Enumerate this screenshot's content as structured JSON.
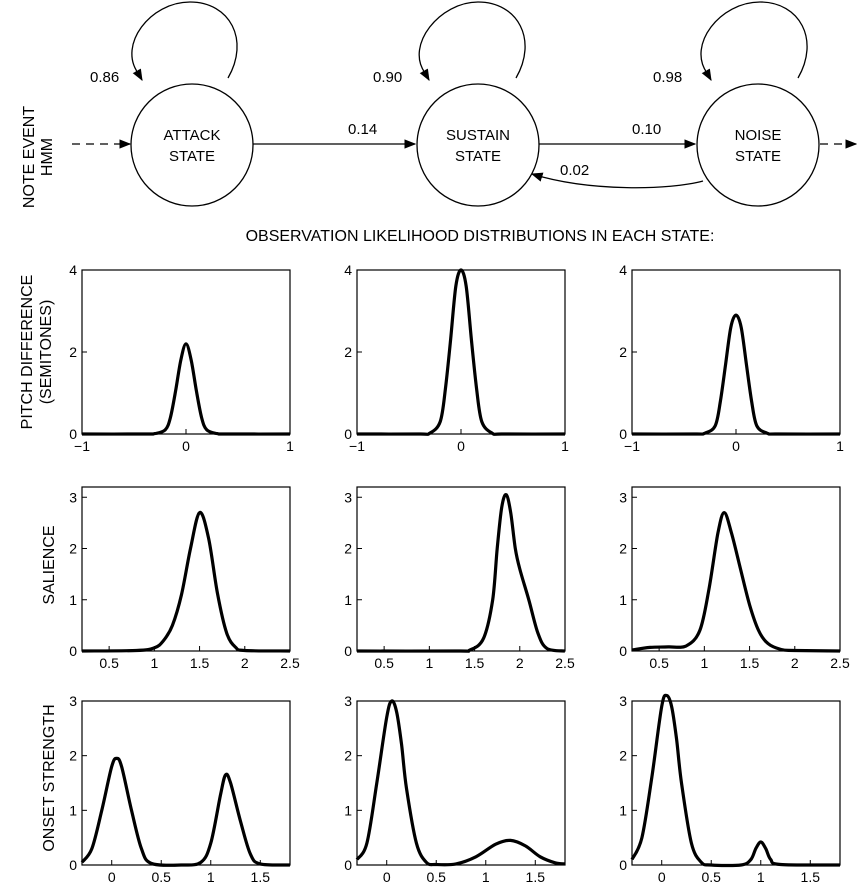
{
  "hmm": {
    "side_label_line1": "NOTE EVENT",
    "side_label_line2": "HMM",
    "states": [
      {
        "line1": "ATTACK",
        "line2": "STATE",
        "self_prob": "0.86"
      },
      {
        "line1": "SUSTAIN",
        "line2": "STATE",
        "self_prob": "0.90"
      },
      {
        "line1": "NOISE",
        "line2": "STATE",
        "self_prob": "0.98"
      }
    ],
    "transitions": {
      "attack_to_sustain": "0.14",
      "sustain_to_noise": "0.10",
      "noise_to_sustain": "0.02"
    }
  },
  "heading": "OBSERVATION LIKELIHOOD DISTRIBUTIONS IN EACH STATE:",
  "row_labels": [
    {
      "line1": "PITCH DIFFERENCE",
      "line2": "(SEMITONES)"
    },
    {
      "line1": "SALIENCE",
      "line2": ""
    },
    {
      "line1": "ONSET STRENGTH",
      "line2": ""
    }
  ],
  "chart_data": [
    {
      "type": "line",
      "row": 0,
      "col": 0,
      "xlim": [
        -1,
        1
      ],
      "ylim": [
        0,
        4
      ],
      "xticks": [
        "−1",
        "0",
        "1"
      ],
      "xtick_values": [
        -1,
        0,
        1
      ],
      "yticks": [
        "0",
        "2",
        "4"
      ],
      "ytick_values": [
        0,
        2,
        4
      ],
      "x": [
        -1,
        -0.4,
        -0.3,
        -0.2,
        -0.15,
        -0.1,
        -0.05,
        0,
        0.05,
        0.1,
        0.15,
        0.2,
        0.3,
        0.4,
        1
      ],
      "y": [
        0,
        0,
        0.01,
        0.1,
        0.4,
        1.05,
        1.8,
        2.2,
        1.8,
        1.05,
        0.4,
        0.1,
        0.01,
        0,
        0
      ]
    },
    {
      "type": "line",
      "row": 0,
      "col": 1,
      "xlim": [
        -1,
        1
      ],
      "ylim": [
        0,
        4
      ],
      "xticks": [
        "−1",
        "0",
        "1"
      ],
      "xtick_values": [
        -1,
        0,
        1
      ],
      "yticks": [
        "0",
        "2",
        "4"
      ],
      "ytick_values": [
        0,
        2,
        4
      ],
      "x": [
        -1,
        -0.4,
        -0.3,
        -0.2,
        -0.15,
        -0.1,
        -0.05,
        0,
        0.05,
        0.1,
        0.15,
        0.2,
        0.3,
        0.4,
        1
      ],
      "y": [
        0,
        0,
        0.02,
        0.3,
        1.1,
        2.3,
        3.6,
        4.0,
        3.6,
        2.3,
        1.1,
        0.3,
        0.02,
        0,
        0
      ]
    },
    {
      "type": "line",
      "row": 0,
      "col": 2,
      "xlim": [
        -1,
        1
      ],
      "ylim": [
        0,
        4
      ],
      "xticks": [
        "−1",
        "0",
        "1"
      ],
      "xtick_values": [
        -1,
        0,
        1
      ],
      "yticks": [
        "0",
        "2",
        "4"
      ],
      "ytick_values": [
        0,
        2,
        4
      ],
      "x": [
        -1,
        -0.4,
        -0.3,
        -0.2,
        -0.15,
        -0.1,
        -0.05,
        0,
        0.05,
        0.1,
        0.15,
        0.2,
        0.3,
        0.4,
        1
      ],
      "y": [
        0,
        0,
        0.02,
        0.2,
        0.8,
        1.7,
        2.6,
        2.9,
        2.6,
        1.7,
        0.8,
        0.2,
        0.02,
        0,
        0
      ]
    },
    {
      "type": "line",
      "row": 1,
      "col": 1,
      "xlim": [
        0.2,
        2.5
      ],
      "ylim": [
        0,
        3.2
      ],
      "xticks": [
        "0.5",
        "1",
        "1.5",
        "2",
        "2.5"
      ],
      "xtick_values": [
        0.5,
        1,
        1.5,
        2,
        2.5
      ],
      "yticks": [
        "0",
        "1",
        "2",
        "3"
      ],
      "ytick_values": [
        0,
        1,
        2,
        3
      ],
      "x": [
        0.2,
        1.3,
        1.45,
        1.6,
        1.7,
        1.75,
        1.8,
        1.85,
        1.9,
        1.95,
        2.0,
        2.1,
        2.2,
        2.3,
        2.5
      ],
      "y": [
        0,
        0,
        0.02,
        0.25,
        1.0,
        2.0,
        2.8,
        3.05,
        2.7,
        2.0,
        1.6,
        1.0,
        0.35,
        0.05,
        0
      ]
    },
    {
      "type": "line",
      "row": 1,
      "col": 0,
      "xlim": [
        0.2,
        2.5
      ],
      "ylim": [
        0,
        3.2
      ],
      "xticks": [
        "0.5",
        "1",
        "1.5",
        "2",
        "2.5"
      ],
      "xtick_values": [
        0.5,
        1,
        1.5,
        2,
        2.5
      ],
      "yticks": [
        "0",
        "1",
        "2",
        "3"
      ],
      "ytick_values": [
        0,
        1,
        2,
        3
      ],
      "x": [
        0.2,
        0.8,
        1.0,
        1.1,
        1.2,
        1.3,
        1.4,
        1.5,
        1.6,
        1.7,
        1.8,
        1.9,
        2.0,
        2.5
      ],
      "y": [
        0,
        0.01,
        0.06,
        0.2,
        0.5,
        1.1,
        2.0,
        2.7,
        2.2,
        1.1,
        0.35,
        0.07,
        0.01,
        0
      ]
    },
    {
      "type": "line",
      "row": 1,
      "col": 2,
      "xlim": [
        0.2,
        2.5
      ],
      "ylim": [
        0,
        3.2
      ],
      "xticks": [
        "0.5",
        "1",
        "1.5",
        "2",
        "2.5"
      ],
      "xtick_values": [
        0.5,
        1,
        1.5,
        2,
        2.5
      ],
      "yticks": [
        "0",
        "1",
        "2",
        "3"
      ],
      "ytick_values": [
        0,
        1,
        2,
        3
      ],
      "x": [
        0.2,
        0.4,
        0.6,
        0.8,
        0.95,
        1.05,
        1.15,
        1.22,
        1.3,
        1.4,
        1.5,
        1.6,
        1.7,
        1.85,
        2.0,
        2.5
      ],
      "y": [
        0.02,
        0.07,
        0.08,
        0.1,
        0.4,
        1.2,
        2.3,
        2.7,
        2.3,
        1.6,
        0.9,
        0.4,
        0.15,
        0.03,
        0.01,
        0
      ]
    },
    {
      "type": "line",
      "row": 2,
      "col": 0,
      "xlim": [
        -0.3,
        1.8
      ],
      "ylim": [
        0,
        3
      ],
      "xticks": [
        "0",
        "0.5",
        "1",
        "1.5"
      ],
      "xtick_values": [
        0,
        0.5,
        1,
        1.5
      ],
      "yticks": [
        "0",
        "1",
        "2",
        "3"
      ],
      "ytick_values": [
        0,
        1,
        2,
        3
      ],
      "x": [
        -0.3,
        -0.2,
        -0.1,
        0,
        0.05,
        0.1,
        0.2,
        0.3,
        0.4,
        0.7,
        0.9,
        1.0,
        1.1,
        1.15,
        1.2,
        1.3,
        1.4,
        1.5,
        1.8
      ],
      "y": [
        0.05,
        0.3,
        1.0,
        1.8,
        1.95,
        1.8,
        1.0,
        0.3,
        0.03,
        0,
        0.05,
        0.4,
        1.3,
        1.65,
        1.5,
        0.8,
        0.2,
        0.02,
        0
      ]
    },
    {
      "type": "line",
      "row": 2,
      "col": 1,
      "xlim": [
        -0.3,
        1.8
      ],
      "ylim": [
        0,
        3
      ],
      "xticks": [
        "0",
        "0.5",
        "1",
        "1.5"
      ],
      "xtick_values": [
        0,
        0.5,
        1,
        1.5
      ],
      "yticks": [
        "0",
        "1",
        "2",
        "3"
      ],
      "ytick_values": [
        0,
        1,
        2,
        3
      ],
      "x": [
        -0.3,
        -0.2,
        -0.1,
        0,
        0.05,
        0.1,
        0.15,
        0.2,
        0.3,
        0.4,
        0.5,
        0.7,
        0.9,
        1.1,
        1.25,
        1.4,
        1.55,
        1.7,
        1.8
      ],
      "y": [
        0.1,
        0.4,
        1.5,
        2.7,
        3.0,
        2.8,
        2.2,
        1.4,
        0.4,
        0.05,
        0.01,
        0.02,
        0.15,
        0.38,
        0.45,
        0.35,
        0.15,
        0.04,
        0.02
      ]
    },
    {
      "type": "line",
      "row": 2,
      "col": 2,
      "xlim": [
        -0.3,
        1.8
      ],
      "ylim": [
        0,
        3
      ],
      "xticks": [
        "0",
        "0.5",
        "1",
        "1.5"
      ],
      "xtick_values": [
        0,
        0.5,
        1,
        1.5
      ],
      "yticks": [
        "0",
        "1",
        "2",
        "3"
      ],
      "ytick_values": [
        0,
        1,
        2,
        3
      ],
      "x": [
        -0.3,
        -0.2,
        -0.1,
        0,
        0.05,
        0.1,
        0.15,
        0.2,
        0.3,
        0.4,
        0.5,
        0.8,
        0.9,
        0.95,
        1.0,
        1.05,
        1.1,
        1.2,
        1.8
      ],
      "y": [
        0.1,
        0.5,
        1.6,
        2.9,
        3.1,
        2.9,
        2.3,
        1.5,
        0.4,
        0.05,
        0,
        0,
        0.1,
        0.3,
        0.42,
        0.3,
        0.1,
        0.01,
        0
      ]
    }
  ]
}
